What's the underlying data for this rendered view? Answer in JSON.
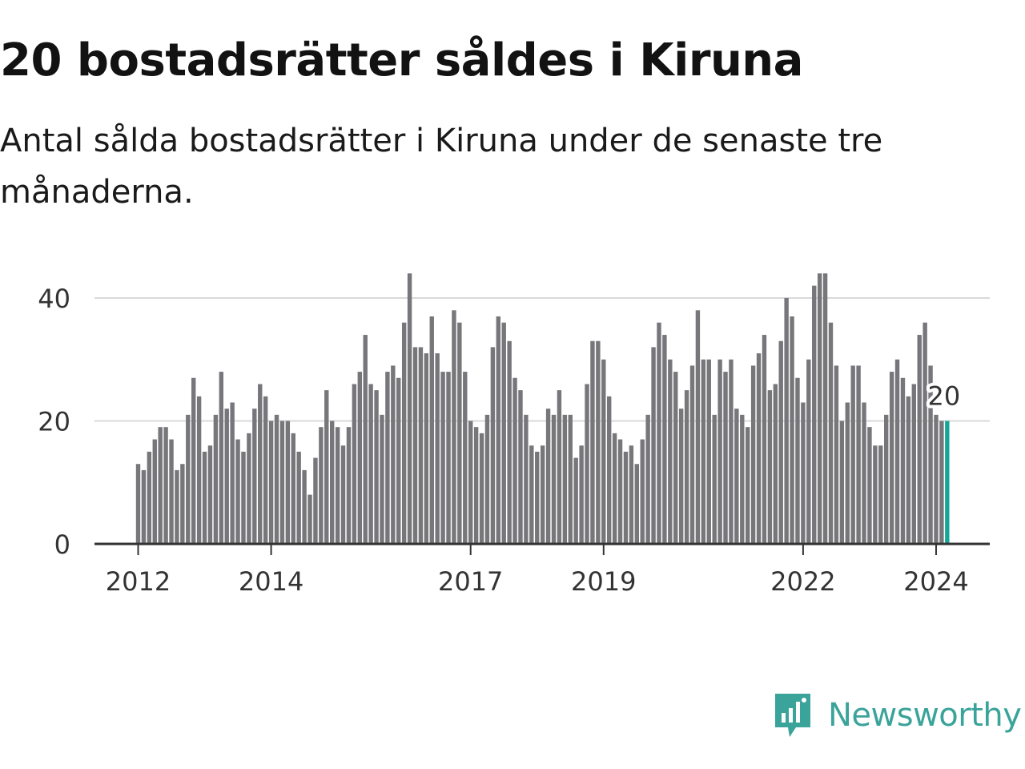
{
  "title": "20 bostadsrätter såldes i Kiruna",
  "subtitle": "Antal sålda bostadsrätter i Kiruna under de senaste tre månaderna.",
  "colors": {
    "bar": "#77767b",
    "highlight": "#14a697",
    "grid": "#d9d9d9",
    "axis": "#333333"
  },
  "chart_data": {
    "type": "bar",
    "title": "20 bostadsrätter såldes i Kiruna",
    "xlabel": "",
    "ylabel": "",
    "ylim": [
      0,
      45
    ],
    "yticks": [
      0,
      20,
      40
    ],
    "start": "2012-01",
    "xtick_labels": [
      {
        "label": "2012",
        "index": 0
      },
      {
        "label": "2014",
        "index": 24
      },
      {
        "label": "2017",
        "index": 60
      },
      {
        "label": "2019",
        "index": 84
      },
      {
        "label": "2022",
        "index": 120
      },
      {
        "label": "2024",
        "index": 144
      }
    ],
    "values": [
      13,
      12,
      15,
      17,
      19,
      19,
      17,
      12,
      13,
      21,
      27,
      24,
      15,
      16,
      21,
      28,
      22,
      23,
      17,
      15,
      18,
      22,
      26,
      24,
      20,
      21,
      20,
      20,
      18,
      15,
      12,
      8,
      14,
      19,
      25,
      20,
      19,
      16,
      19,
      26,
      28,
      34,
      26,
      25,
      21,
      28,
      29,
      27,
      36,
      44,
      32,
      32,
      31,
      37,
      31,
      28,
      28,
      38,
      36,
      28,
      20,
      19,
      18,
      21,
      32,
      37,
      36,
      33,
      27,
      25,
      21,
      16,
      15,
      16,
      22,
      21,
      25,
      21,
      21,
      14,
      16,
      26,
      33,
      33,
      30,
      24,
      18,
      17,
      15,
      16,
      13,
      17,
      21,
      32,
      36,
      34,
      30,
      28,
      22,
      25,
      29,
      38,
      30,
      30,
      21,
      30,
      28,
      30,
      22,
      21,
      19,
      29,
      31,
      34,
      25,
      26,
      33,
      40,
      37,
      27,
      23,
      30,
      42,
      44,
      44,
      36,
      29,
      20,
      23,
      29,
      29,
      23,
      19,
      16,
      16,
      21,
      28,
      30,
      27,
      24,
      26,
      34,
      36,
      29,
      21,
      20,
      20
    ],
    "highlight_index": 146,
    "annotation": "20"
  },
  "logo": {
    "icon": "newsworthy-logo-icon",
    "text": "Newsworthy"
  }
}
